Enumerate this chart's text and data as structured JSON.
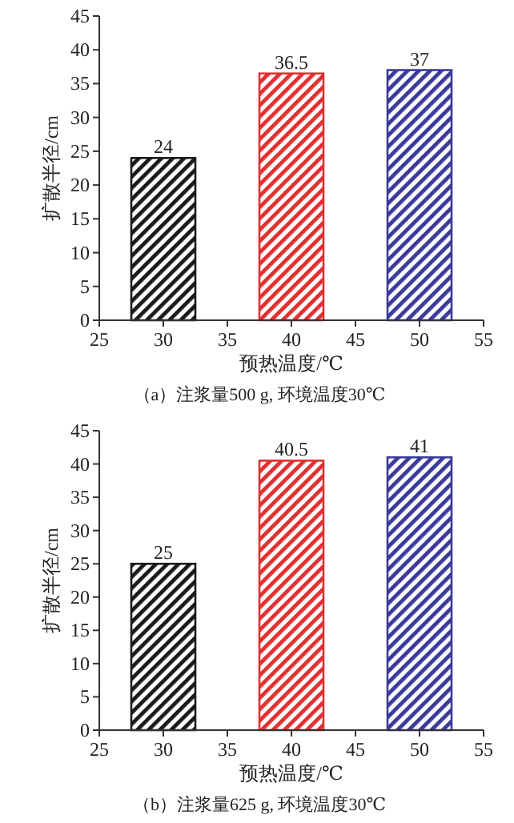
{
  "chart_data": [
    {
      "type": "bar",
      "title": "（a）注浆量500 g, 环境温度30℃",
      "xlabel": "预热温度/℃",
      "ylabel": "扩散半径/cm",
      "x": [
        30,
        40,
        50
      ],
      "values": [
        24,
        36.5,
        37
      ],
      "colors": [
        "#1a1a1a",
        "#e03030",
        "#3a3a9a"
      ],
      "xlim": [
        25,
        55
      ],
      "xticks": [
        25,
        30,
        35,
        40,
        45,
        50,
        55
      ],
      "ylim": [
        0,
        45
      ],
      "yticks": [
        0,
        5,
        10,
        15,
        20,
        25,
        30,
        35,
        40,
        45
      ],
      "data_labels": true
    },
    {
      "type": "bar",
      "title": "（b）注浆量625 g, 环境温度30℃",
      "xlabel": "预热温度/℃",
      "ylabel": "扩散半径/cm",
      "x": [
        30,
        40,
        50
      ],
      "values": [
        25,
        40.5,
        41
      ],
      "colors": [
        "#1a1a1a",
        "#e03030",
        "#3a3a9a"
      ],
      "xlim": [
        25,
        55
      ],
      "xticks": [
        25,
        30,
        35,
        40,
        45,
        50,
        55
      ],
      "ylim": [
        0,
        45
      ],
      "yticks": [
        0,
        5,
        10,
        15,
        20,
        25,
        30,
        35,
        40,
        45
      ],
      "data_labels": true
    }
  ]
}
